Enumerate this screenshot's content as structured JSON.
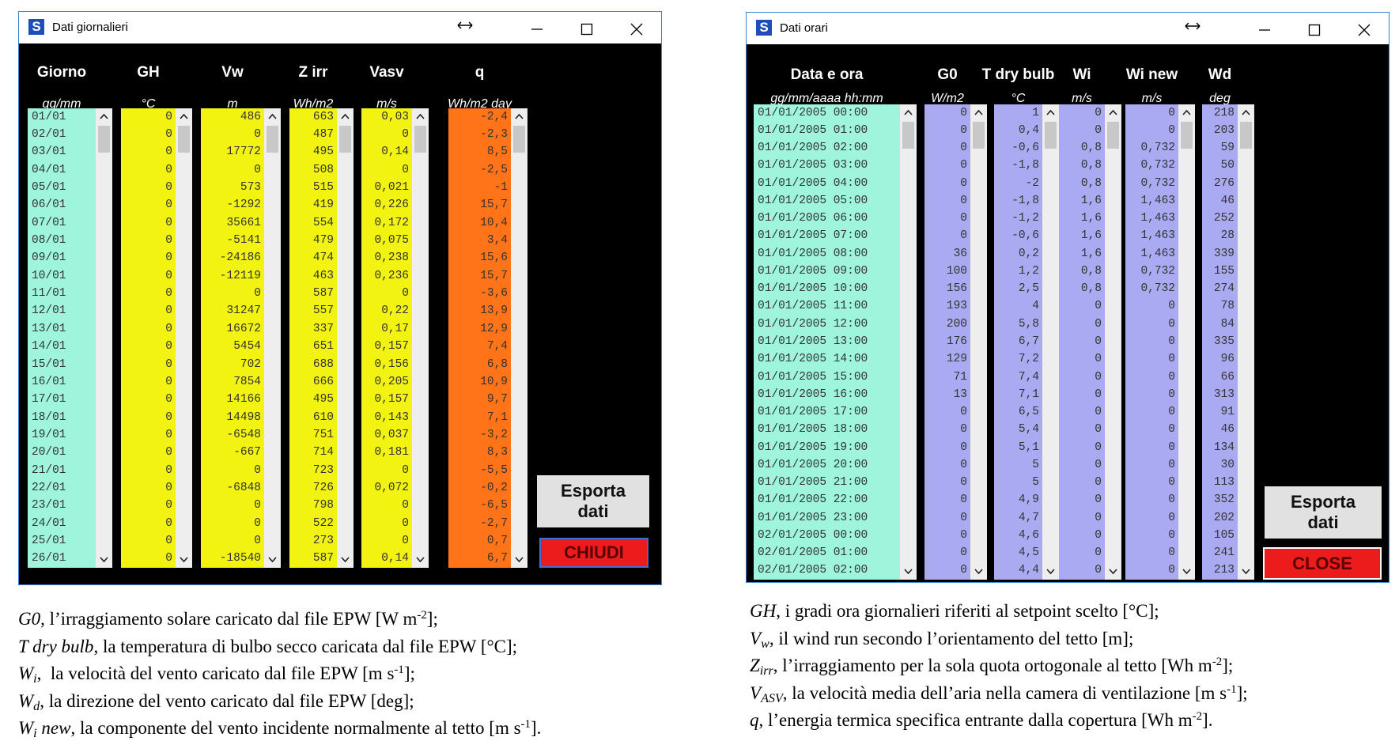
{
  "windows": [
    {
      "title": "Dati giornalieri",
      "columns": [
        {
          "header": "Giorno",
          "unit": "gg/mm",
          "color": "#9ff5dc",
          "align": "left",
          "values": [
            "01/01",
            "02/01",
            "03/01",
            "04/01",
            "05/01",
            "06/01",
            "07/01",
            "08/01",
            "09/01",
            "10/01",
            "11/01",
            "12/01",
            "13/01",
            "14/01",
            "15/01",
            "16/01",
            "17/01",
            "18/01",
            "19/01",
            "20/01",
            "21/01",
            "22/01",
            "23/01",
            "24/01",
            "25/01",
            "26/01"
          ]
        },
        {
          "header": "GH",
          "unit": "°C",
          "color": "#f3f312",
          "align": "right",
          "values": [
            "0",
            "0",
            "0",
            "0",
            "0",
            "0",
            "0",
            "0",
            "0",
            "0",
            "0",
            "0",
            "0",
            "0",
            "0",
            "0",
            "0",
            "0",
            "0",
            "0",
            "0",
            "0",
            "0",
            "0",
            "0",
            "0"
          ]
        },
        {
          "header": "Vw",
          "unit": "m",
          "color": "#f3f312",
          "align": "right",
          "values": [
            "486",
            "0",
            "17772",
            "0",
            "573",
            "-1292",
            "35661",
            "-5141",
            "-24186",
            "-12119",
            "0",
            "31247",
            "16672",
            "5454",
            "702",
            "7854",
            "14166",
            "14498",
            "-6548",
            "-667",
            "0",
            "-6848",
            "0",
            "0",
            "0",
            "-18540"
          ]
        },
        {
          "header": "Z irr",
          "unit": "Wh/m2",
          "color": "#f3f312",
          "align": "right",
          "values": [
            "663",
            "487",
            "495",
            "508",
            "515",
            "419",
            "554",
            "479",
            "474",
            "463",
            "587",
            "557",
            "337",
            "651",
            "688",
            "666",
            "495",
            "610",
            "751",
            "714",
            "723",
            "726",
            "798",
            "522",
            "273",
            "587"
          ]
        },
        {
          "header": "Vasv",
          "unit": "m/s",
          "color": "#f3f312",
          "align": "right",
          "values": [
            "0,03",
            "0",
            "0,14",
            "0",
            "0,021",
            "0,226",
            "0,172",
            "0,075",
            "0,238",
            "0,236",
            "0",
            "0,22",
            "0,17",
            "0,157",
            "0,156",
            "0,205",
            "0,157",
            "0,143",
            "0,037",
            "0,181",
            "0",
            "0,072",
            "0",
            "0",
            "0",
            "0,14"
          ]
        },
        {
          "header": "q",
          "unit": "Wh/m2 day",
          "color": "#ff7419",
          "align": "right",
          "values": [
            "-2,4",
            "-2,3",
            "8,5",
            "-2,5",
            "-1",
            "15,7",
            "10,4",
            "3,4",
            "15,6",
            "15,7",
            "-3,6",
            "13,9",
            "12,9",
            "7,4",
            "6,8",
            "10,9",
            "9,7",
            "7,1",
            "-3,2",
            "8,3",
            "-5,5",
            "-0,2",
            "-6,5",
            "-2,7",
            "0,7",
            "6,7"
          ]
        }
      ],
      "buttons": [
        "Esporta dati",
        "CHIUDI"
      ]
    },
    {
      "title": "Dati orari",
      "columns": [
        {
          "header": "Data e ora",
          "unit": "gg/mm/aaaa hh:mm",
          "color": "#9ff5dc",
          "align": "left",
          "values": [
            "01/01/2005 00:00",
            "01/01/2005 01:00",
            "01/01/2005 02:00",
            "01/01/2005 03:00",
            "01/01/2005 04:00",
            "01/01/2005 05:00",
            "01/01/2005 06:00",
            "01/01/2005 07:00",
            "01/01/2005 08:00",
            "01/01/2005 09:00",
            "01/01/2005 10:00",
            "01/01/2005 11:00",
            "01/01/2005 12:00",
            "01/01/2005 13:00",
            "01/01/2005 14:00",
            "01/01/2005 15:00",
            "01/01/2005 16:00",
            "01/01/2005 17:00",
            "01/01/2005 18:00",
            "01/01/2005 19:00",
            "01/01/2005 20:00",
            "01/01/2005 21:00",
            "01/01/2005 22:00",
            "01/01/2005 23:00",
            "02/01/2005 00:00",
            "02/01/2005 01:00",
            "02/01/2005 02:00"
          ]
        },
        {
          "header": "G0",
          "unit": "W/m2",
          "color": "#aaaaf2",
          "align": "right",
          "values": [
            "0",
            "0",
            "0",
            "0",
            "0",
            "0",
            "0",
            "0",
            "36",
            "100",
            "156",
            "193",
            "200",
            "176",
            "129",
            "71",
            "13",
            "0",
            "0",
            "0",
            "0",
            "0",
            "0",
            "0",
            "0",
            "0",
            "0"
          ]
        },
        {
          "header": "T dry bulb",
          "unit": "°C",
          "color": "#aaaaf2",
          "align": "right",
          "values": [
            "1",
            "0,4",
            "-0,6",
            "-1,8",
            "-2",
            "-1,8",
            "-1,2",
            "-0,6",
            "0,2",
            "1,2",
            "2,5",
            "4",
            "5,8",
            "6,7",
            "7,2",
            "7,4",
            "7,1",
            "6,5",
            "5,4",
            "5,1",
            "5",
            "5",
            "4,9",
            "4,7",
            "4,6",
            "4,5",
            "4,4"
          ]
        },
        {
          "header": "Wi",
          "unit": "m/s",
          "color": "#aaaaf2",
          "align": "right",
          "values": [
            "0",
            "0",
            "0,8",
            "0,8",
            "0,8",
            "1,6",
            "1,6",
            "1,6",
            "1,6",
            "0,8",
            "0,8",
            "0",
            "0",
            "0",
            "0",
            "0",
            "0",
            "0",
            "0",
            "0",
            "0",
            "0",
            "0",
            "0",
            "0",
            "0",
            "0"
          ]
        },
        {
          "header": "Wi new",
          "unit": "m/s",
          "color": "#aaaaf2",
          "align": "right",
          "values": [
            "0",
            "0",
            "0,732",
            "0,732",
            "0,732",
            "1,463",
            "1,463",
            "1,463",
            "1,463",
            "0,732",
            "0,732",
            "0",
            "0",
            "0",
            "0",
            "0",
            "0",
            "0",
            "0",
            "0",
            "0",
            "0",
            "0",
            "0",
            "0",
            "0",
            "0"
          ]
        },
        {
          "header": "Wd",
          "unit": "deg",
          "color": "#aaaaf2",
          "align": "right",
          "values": [
            "218",
            "203",
            "59",
            "50",
            "276",
            "46",
            "252",
            "28",
            "339",
            "155",
            "274",
            "78",
            "84",
            "335",
            "96",
            "66",
            "313",
            "91",
            "46",
            "134",
            "30",
            "113",
            "352",
            "202",
            "105",
            "241",
            "213"
          ]
        }
      ],
      "buttons": [
        "Esporta dati",
        "CLOSE"
      ]
    }
  ],
  "captions": [
    {
      "lines": [
        [
          {
            "text": "G0",
            "style": "italic"
          },
          {
            "text": ", l’irraggiamento solare caricato dal file EPW [W m"
          },
          {
            "text": "-2",
            "style": "sup"
          },
          {
            "text": "];"
          }
        ],
        [
          {
            "text": "T dry bulb",
            "style": "italic"
          },
          {
            "text": ", la temperatura di bulbo secco caricata dal file EPW [°C];"
          }
        ],
        [
          {
            "text": "W",
            "style": "italic"
          },
          {
            "text": "i",
            "style": "italic-sub"
          },
          {
            "text": ",  la velocità del vento caricato dal file EPW [m s"
          },
          {
            "text": "-1",
            "style": "sup"
          },
          {
            "text": "];"
          }
        ],
        [
          {
            "text": "W",
            "style": "italic"
          },
          {
            "text": "d",
            "style": "italic-sub"
          },
          {
            "text": ", la direzione del vento caricato dal file EPW [deg];"
          }
        ],
        [
          {
            "text": "W",
            "style": "italic"
          },
          {
            "text": "i",
            "style": "italic-sub"
          },
          {
            "text": " new",
            "style": "italic"
          },
          {
            "text": ", la componente del vento incidente normalmente al tetto [m s"
          },
          {
            "text": "-1",
            "style": "sup"
          },
          {
            "text": "]."
          }
        ]
      ]
    },
    {
      "lines": [
        [
          {
            "text": "GH",
            "style": "italic"
          },
          {
            "text": ", i gradi ora giornalieri riferiti al setpoint scelto [°C];"
          }
        ],
        [
          {
            "text": "V",
            "style": "italic"
          },
          {
            "text": "w",
            "style": "italic-sub"
          },
          {
            "text": ", il wind run secondo l’orientamento del tetto [m];"
          }
        ],
        [
          {
            "text": "Z",
            "style": "italic"
          },
          {
            "text": "irr",
            "style": "italic-sub"
          },
          {
            "text": ", l’irraggiamento per la sola quota ortogonale al tetto [Wh m"
          },
          {
            "text": "-2",
            "style": "sup"
          },
          {
            "text": "];"
          }
        ],
        [
          {
            "text": "V",
            "style": "italic"
          },
          {
            "text": "ASV",
            "style": "italic-sub"
          },
          {
            "text": ", la velocità media dell’aria nella camera di ventilazione [m s"
          },
          {
            "text": "-1",
            "style": "sup"
          },
          {
            "text": "];"
          }
        ],
        [
          {
            "text": "q",
            "style": "italic"
          },
          {
            "text": ", l’energia termica specifica entrante dalla copertura [Wh m"
          },
          {
            "text": "-2",
            "style": "sup"
          },
          {
            "text": "]."
          }
        ]
      ]
    }
  ]
}
